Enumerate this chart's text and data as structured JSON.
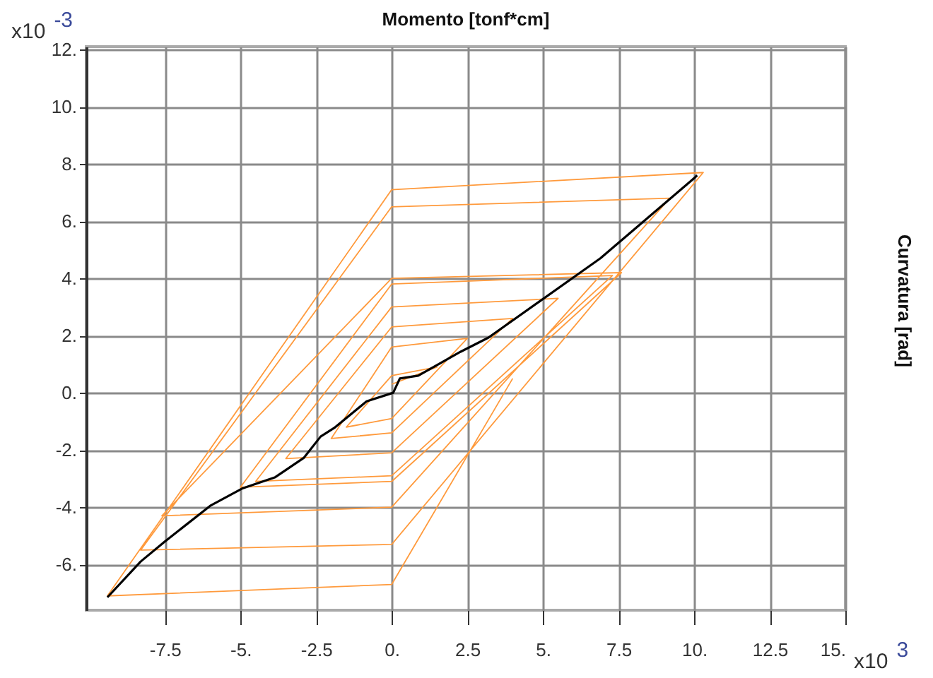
{
  "chart_data": {
    "type": "line",
    "title": "Momento [tonf*cm]",
    "ylabel": "Curvatura [rad]",
    "annotations": [
      "x10$^{-3}$",
      "x10$^{3}$"
    ],
    "xlim": [
      -10.1,
      15
    ],
    "ylim": [
      -7.6,
      12.1
    ],
    "xticks": [
      {
        "value": -7.5,
        "label": "-7.5"
      },
      {
        "value": -5,
        "label": "-5."
      },
      {
        "value": -2.5,
        "label": "-2.5"
      },
      {
        "value": 0,
        "label": "0."
      },
      {
        "value": 2.5,
        "label": "2.5"
      },
      {
        "value": 5,
        "label": "5."
      },
      {
        "value": 7.5,
        "label": "7.5"
      },
      {
        "value": 10,
        "label": "10."
      },
      {
        "value": 12.5,
        "label": "12.5"
      },
      {
        "value": 15,
        "label": "15."
      }
    ],
    "yticks": [
      {
        "value": -6,
        "label": "-6."
      },
      {
        "value": -4,
        "label": "-4."
      },
      {
        "value": -2,
        "label": "-2."
      },
      {
        "value": 0,
        "label": "0."
      },
      {
        "value": 2,
        "label": "2."
      },
      {
        "value": 4,
        "label": "4."
      },
      {
        "value": 6,
        "label": "6."
      },
      {
        "value": 8,
        "label": "8."
      },
      {
        "value": 10,
        "label": "10."
      },
      {
        "value": 12,
        "label": "12."
      }
    ],
    "grid": true,
    "marker": "none",
    "series": [
      {
        "color": "#ff9a3c",
        "x": [
          0,
          1.5,
          0,
          -1.5,
          0,
          2.5,
          0,
          -2.0,
          0,
          4.0,
          0,
          -3.5,
          0,
          5.5,
          0,
          -4.5,
          0,
          7.3,
          0,
          -5.0,
          0,
          7.6,
          0,
          -7.6,
          0,
          9.2,
          0,
          -8.3,
          0,
          10.3,
          0,
          -9.4,
          0,
          4.0
        ],
        "values": [
          0.3,
          0.9,
          0.6,
          -1.2,
          -0.9,
          1.9,
          1.6,
          -1.6,
          -1.4,
          2.6,
          2.3,
          -2.3,
          -2.1,
          3.3,
          3.0,
          -3.1,
          -2.9,
          4.1,
          3.8,
          -3.3,
          -3.1,
          4.2,
          4.0,
          -4.3,
          -4.0,
          6.8,
          6.5,
          -5.5,
          -5.3,
          7.7,
          7.1,
          -7.1,
          -6.7,
          0.5
        ]
      },
      {
        "color": "#000000",
        "x": [
          -9.4,
          -8.3,
          -7.5,
          -6.0,
          -4.95,
          -3.85,
          -2.9,
          -2.35,
          -1.9,
          -0.83,
          0.05,
          0.27,
          0.88,
          2.27,
          3.2,
          6.9,
          10.0,
          10.1
        ],
        "values": [
          -7.15,
          -5.9,
          -5.2,
          -3.95,
          -3.35,
          -2.95,
          -2.27,
          -1.53,
          -1.23,
          -0.3,
          0,
          0.5,
          0.6,
          1.43,
          1.93,
          4.7,
          7.5,
          7.6
        ]
      }
    ]
  }
}
